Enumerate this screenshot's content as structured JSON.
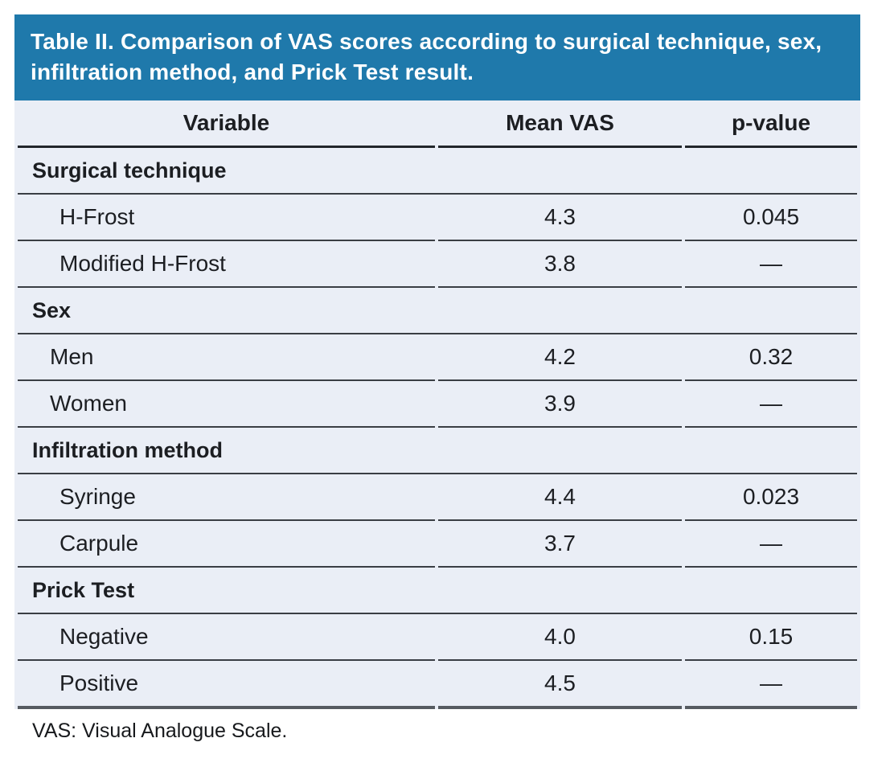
{
  "accent_color": "#1f79ab",
  "row_bg_color": "#eaeef6",
  "title": "Table II. Comparison of VAS scores according to surgical technique, sex, infiltration method, and Prick Test result.",
  "columns": {
    "variable": "Variable",
    "mean_vas": "Mean VAS",
    "p_value": "p-value"
  },
  "sections": [
    {
      "header": "Surgical technique",
      "rows": [
        {
          "label": "H-Frost",
          "mean_vas": "4.3",
          "p_value": "0.045"
        },
        {
          "label": "Modified H-Frost",
          "mean_vas": "3.8",
          "p_value": "—"
        }
      ]
    },
    {
      "header": "Sex",
      "rows": [
        {
          "label": "Men",
          "mean_vas": "4.2",
          "p_value": "0.32"
        },
        {
          "label": "Women",
          "mean_vas": "3.9",
          "p_value": "—"
        }
      ]
    },
    {
      "header": "Infiltration method",
      "rows": [
        {
          "label": "Syringe",
          "mean_vas": "4.4",
          "p_value": "0.023"
        },
        {
          "label": "Carpule",
          "mean_vas": "3.7",
          "p_value": "—"
        }
      ]
    },
    {
      "header": "Prick Test",
      "rows": [
        {
          "label": "Negative",
          "mean_vas": "4.0",
          "p_value": "0.15"
        },
        {
          "label": "Positive",
          "mean_vas": "4.5",
          "p_value": "—"
        }
      ]
    }
  ],
  "footnote": "VAS: Visual Analogue Scale."
}
